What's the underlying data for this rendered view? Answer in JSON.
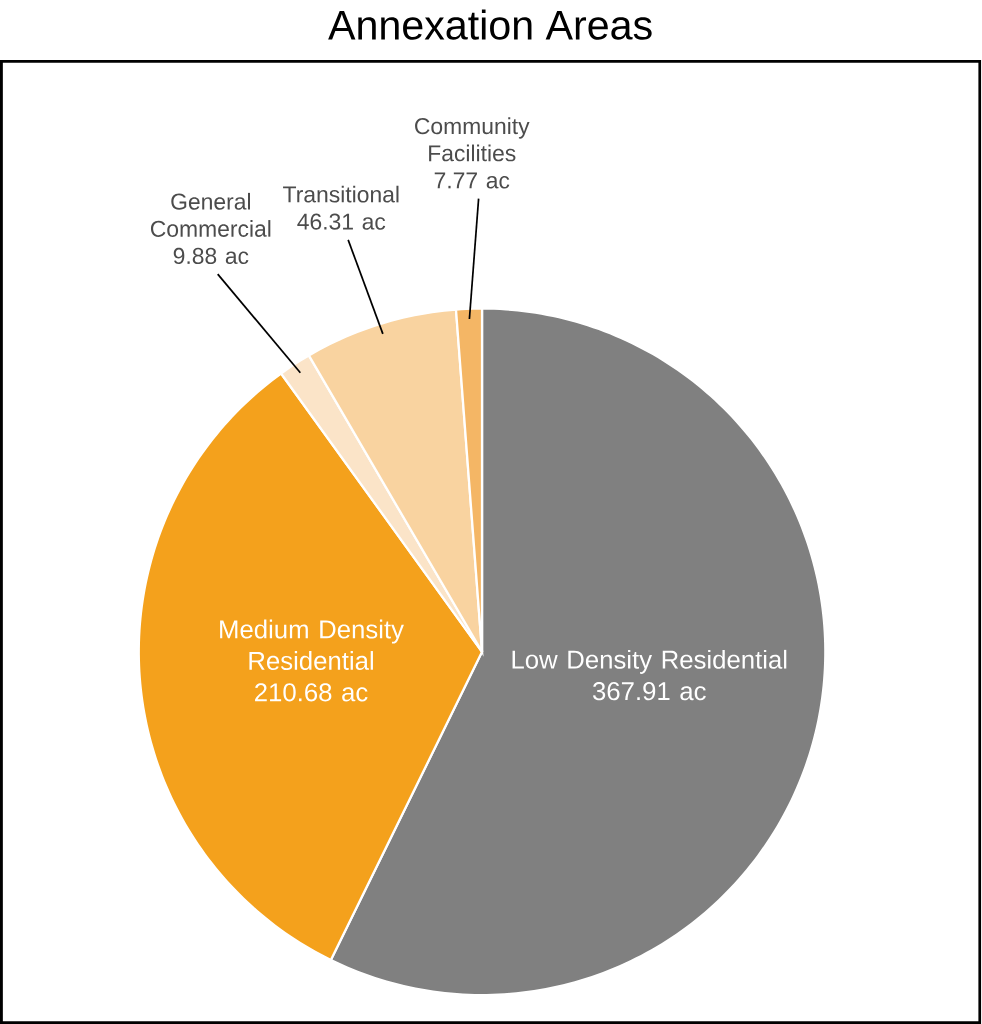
{
  "chart_data": {
    "type": "pie",
    "title": "Annexation Areas",
    "categories": [
      "Low Density Residential",
      "Medium Density Residential",
      "General Commercial",
      "Transitional",
      "Community Facilities"
    ],
    "values": [
      367.91,
      210.68,
      9.88,
      46.31,
      7.77
    ],
    "colors": [
      "#808080",
      "#f4a11c",
      "#fbe4c8",
      "#f9d3a0",
      "#f4b665"
    ],
    "value_labels": [
      "367.91 ac",
      "210.68 ac",
      "9.88 ac",
      "46.31 ac",
      "7.77 ac"
    ]
  }
}
